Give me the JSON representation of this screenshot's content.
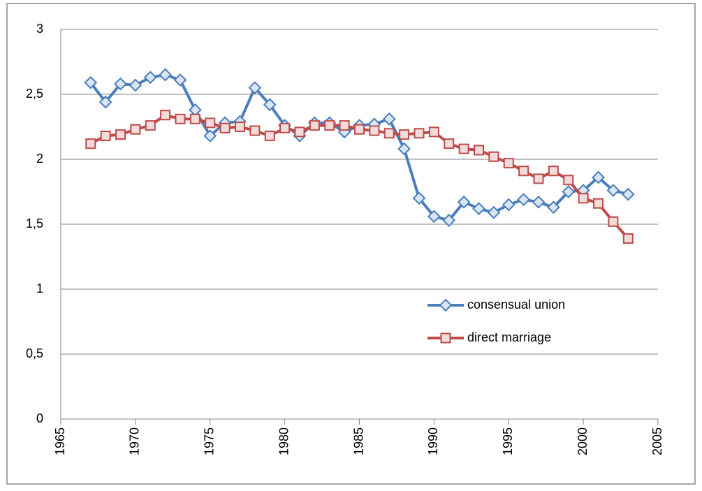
{
  "chart_data": {
    "type": "line",
    "x": [
      1967,
      1968,
      1969,
      1970,
      1971,
      1972,
      1973,
      1974,
      1975,
      1976,
      1977,
      1978,
      1979,
      1980,
      1981,
      1982,
      1983,
      1984,
      1985,
      1986,
      1987,
      1988,
      1989,
      1990,
      1991,
      1992,
      1993,
      1994,
      1995,
      1996,
      1997,
      1998,
      1999,
      2000,
      2001,
      2002,
      2003
    ],
    "series": [
      {
        "name": "consensual union",
        "color": "#4a7ebb",
        "marker": "diamond",
        "values": [
          2.59,
          2.44,
          2.58,
          2.57,
          2.63,
          2.65,
          2.61,
          2.38,
          2.18,
          2.28,
          2.29,
          2.55,
          2.42,
          2.26,
          2.18,
          2.28,
          2.28,
          2.21,
          2.26,
          2.27,
          2.31,
          2.08,
          1.7,
          1.56,
          1.53,
          1.67,
          1.62,
          1.59,
          1.65,
          1.69,
          1.67,
          1.63,
          1.75,
          1.76,
          1.86,
          1.76,
          1.73
        ]
      },
      {
        "name": "direct marriage",
        "color": "#be4b48",
        "marker": "square",
        "values": [
          2.12,
          2.18,
          2.19,
          2.23,
          2.26,
          2.34,
          2.31,
          2.31,
          2.28,
          2.24,
          2.25,
          2.22,
          2.18,
          2.24,
          2.21,
          2.26,
          2.26,
          2.26,
          2.23,
          2.22,
          2.2,
          2.19,
          2.2,
          2.21,
          2.12,
          2.08,
          2.07,
          2.02,
          1.97,
          1.91,
          1.85,
          1.91,
          1.84,
          1.7,
          1.66,
          1.52,
          1.39
        ]
      }
    ],
    "xlim": [
      1965,
      2005
    ],
    "xticks": [
      1965,
      1970,
      1975,
      1980,
      1985,
      1990,
      1995,
      2000,
      2005
    ],
    "ylim": [
      0,
      3
    ],
    "yticks": [
      0,
      {
        "value": 0.5,
        "label": "0,5"
      },
      1,
      {
        "value": 1.5,
        "label": "1,5"
      },
      2,
      {
        "value": 2.5,
        "label": "2,5"
      },
      3
    ],
    "grid": true,
    "legend": "right"
  }
}
